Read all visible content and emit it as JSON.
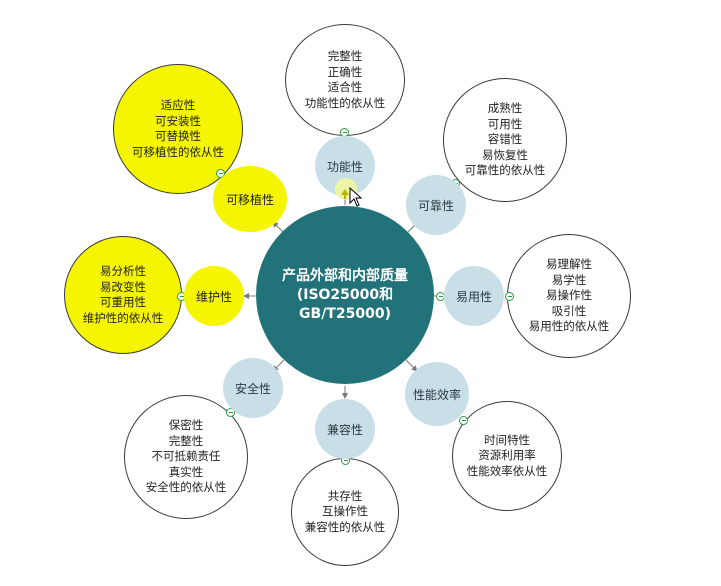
{
  "center": {
    "lines": [
      "产品外部和内部质量",
      "(ISO25000和",
      "GB/T25000)"
    ]
  },
  "dimensions": [
    {
      "id": "functional",
      "label": "功能性",
      "details": [
        "完整性",
        "正确性",
        "适合性",
        "功能性的依从性"
      ]
    },
    {
      "id": "reliability",
      "label": "可靠性",
      "details": [
        "成熟性",
        "可用性",
        "容错性",
        "易恢复性",
        "可靠性的依从性"
      ]
    },
    {
      "id": "usability",
      "label": "易用性",
      "details": [
        "易理解性",
        "易学性",
        "易操作性",
        "吸引性",
        "易用性的依从性"
      ]
    },
    {
      "id": "efficiency",
      "label": "性能效率",
      "details": [
        "时间特性",
        "资源利用率",
        "性能效率依从性"
      ]
    },
    {
      "id": "compatibility",
      "label": "兼容性",
      "details": [
        "共存性",
        "互操作性",
        "兼容性的依从性"
      ]
    },
    {
      "id": "security",
      "label": "安全性",
      "details": [
        "保密性",
        "完整性",
        "不可抵赖责任",
        "真实性",
        "安全性的依从性"
      ]
    },
    {
      "id": "maintainability",
      "label": "维护性",
      "details": [
        "易分析性",
        "易改变性",
        "可重用性",
        "维护性的依从性"
      ]
    },
    {
      "id": "portability",
      "label": "可移植性",
      "details": [
        "适应性",
        "可安装性",
        "可替换性",
        "可移植性的依从性"
      ]
    }
  ],
  "colors": {
    "center": "#22727a",
    "dimension": "#c9dfe7",
    "highlight": "#f5f500",
    "connector": "#777777",
    "collapse": "#2e9c3e"
  }
}
